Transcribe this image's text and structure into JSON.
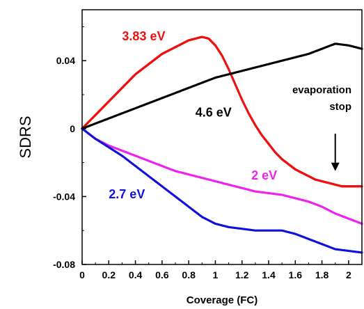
{
  "chart_data": {
    "type": "scatter",
    "title": "",
    "xlabel": "Coverage (FC)",
    "ylabel": "SDRS",
    "xlim": [
      0,
      2.1
    ],
    "ylim": [
      -0.08,
      0.07
    ],
    "x_ticks": [
      "0",
      "0.2",
      "0.4",
      "0.6",
      "0.8",
      "1",
      "1.2",
      "1.4",
      "1.6",
      "1.8",
      "2"
    ],
    "y_ticks": [
      "-0.08",
      "-0.04",
      "0",
      "0.04"
    ],
    "grid": false,
    "series": [
      {
        "name": "3.83 eV",
        "color": "#ee1111",
        "x": [
          0,
          0.05,
          0.1,
          0.15,
          0.2,
          0.25,
          0.3,
          0.35,
          0.4,
          0.45,
          0.5,
          0.55,
          0.6,
          0.65,
          0.7,
          0.75,
          0.8,
          0.85,
          0.9,
          0.95,
          1.0,
          1.05,
          1.1,
          1.15,
          1.2,
          1.25,
          1.3,
          1.35,
          1.4,
          1.45,
          1.5,
          1.55,
          1.6,
          1.65,
          1.7,
          1.75,
          1.8,
          1.85,
          1.9,
          1.95,
          2.0,
          2.05,
          2.1
        ],
        "y": [
          0,
          0.004,
          0.008,
          0.012,
          0.016,
          0.02,
          0.024,
          0.028,
          0.032,
          0.035,
          0.038,
          0.041,
          0.044,
          0.046,
          0.048,
          0.05,
          0.052,
          0.053,
          0.054,
          0.053,
          0.049,
          0.043,
          0.035,
          0.026,
          0.017,
          0.009,
          0.002,
          -0.004,
          -0.009,
          -0.014,
          -0.018,
          -0.021,
          -0.024,
          -0.026,
          -0.028,
          -0.03,
          -0.031,
          -0.032,
          -0.033,
          -0.034,
          -0.034,
          -0.034,
          -0.034
        ]
      },
      {
        "name": "4.6 eV",
        "color": "#000000",
        "x": [
          0,
          0.1,
          0.2,
          0.3,
          0.4,
          0.5,
          0.6,
          0.7,
          0.8,
          0.9,
          1.0,
          1.1,
          1.2,
          1.3,
          1.4,
          1.5,
          1.6,
          1.7,
          1.8,
          1.9,
          2.0,
          2.1
        ],
        "y": [
          0,
          0.003,
          0.006,
          0.009,
          0.012,
          0.015,
          0.018,
          0.021,
          0.024,
          0.027,
          0.03,
          0.032,
          0.034,
          0.036,
          0.038,
          0.04,
          0.042,
          0.044,
          0.047,
          0.05,
          0.049,
          0.047
        ]
      },
      {
        "name": "2 eV",
        "color": "#ee22ee",
        "x": [
          0,
          0.1,
          0.2,
          0.3,
          0.4,
          0.5,
          0.6,
          0.7,
          0.8,
          0.9,
          1.0,
          1.1,
          1.2,
          1.3,
          1.4,
          1.5,
          1.6,
          1.7,
          1.8,
          1.9,
          2.0,
          2.1
        ],
        "y": [
          0,
          -0.006,
          -0.01,
          -0.013,
          -0.016,
          -0.019,
          -0.022,
          -0.025,
          -0.027,
          -0.029,
          -0.031,
          -0.033,
          -0.035,
          -0.037,
          -0.038,
          -0.039,
          -0.041,
          -0.043,
          -0.046,
          -0.05,
          -0.053,
          -0.056
        ]
      },
      {
        "name": "2.7 eV",
        "color": "#1111dd",
        "x": [
          0,
          0.1,
          0.2,
          0.3,
          0.4,
          0.5,
          0.6,
          0.7,
          0.8,
          0.9,
          1.0,
          1.1,
          1.2,
          1.3,
          1.4,
          1.5,
          1.6,
          1.7,
          1.8,
          1.9,
          2.0,
          2.1
        ],
        "y": [
          0,
          -0.006,
          -0.011,
          -0.016,
          -0.022,
          -0.028,
          -0.034,
          -0.04,
          -0.046,
          -0.052,
          -0.056,
          -0.058,
          -0.059,
          -0.06,
          -0.06,
          -0.06,
          -0.062,
          -0.065,
          -0.068,
          -0.071,
          -0.072,
          -0.073
        ]
      }
    ],
    "series_label_positions": [
      {
        "series": "3.83 eV",
        "x": 0.3,
        "y": 0.052
      },
      {
        "series": "4.6 eV",
        "x": 0.85,
        "y": 0.007
      },
      {
        "series": "2 eV",
        "x": 1.27,
        "y": -0.03
      },
      {
        "series": "2.7 eV",
        "x": 0.2,
        "y": -0.041
      }
    ],
    "annotation": {
      "lines": [
        "evaporation",
        "stop"
      ],
      "arrow_x": 1.9,
      "arrow_from_y": -0.003,
      "arrow_to_y": -0.025
    }
  }
}
